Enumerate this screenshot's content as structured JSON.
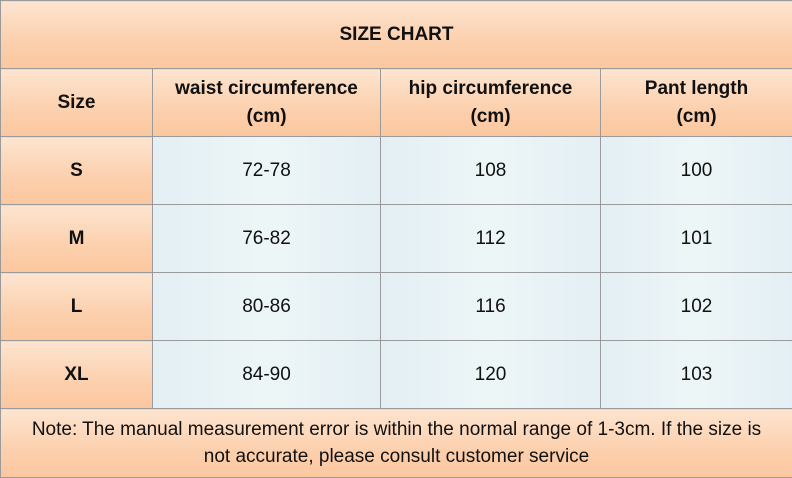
{
  "title": "SIZE CHART",
  "table": {
    "header": [
      "Size",
      "waist circumference\n(cm)",
      "hip circumference\n(cm)",
      "Pant length\n(cm)"
    ],
    "rows": [
      [
        "S",
        "72-78",
        "108",
        "100"
      ],
      [
        "M",
        "76-82",
        "112",
        "101"
      ],
      [
        "L",
        "80-86",
        "116",
        "102"
      ],
      [
        "XL",
        "84-90",
        "120",
        "103"
      ]
    ]
  },
  "note": "Note: The manual measurement error is within the normal range of 1-3cm. If the size is not accurate, please consult customer service"
}
